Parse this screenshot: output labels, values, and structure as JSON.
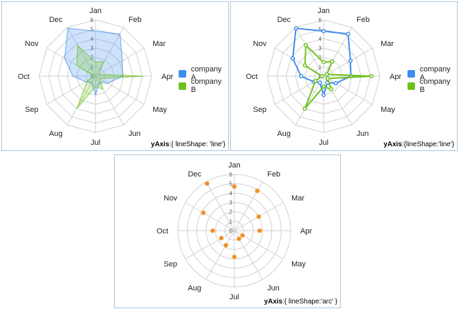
{
  "colors": {
    "grid": "#cfcfcf",
    "axis_text": "#555555",
    "company_a": "#3d8eee",
    "company_b": "#6dc21a",
    "points": "#f08c1f"
  },
  "chart_data": [
    {
      "type": "radar",
      "fill": "area",
      "grid_shape": "line",
      "categories": [
        "Jan",
        "Feb",
        "Mar",
        "Apr",
        "May",
        "Jun",
        "Jul",
        "Aug",
        "Sep",
        "Oct",
        "Nov",
        "Dec"
      ],
      "ylim": [
        0,
        6
      ],
      "yticks": [
        "0",
        "1",
        "2",
        "3",
        "4",
        "5",
        "6"
      ],
      "series": [
        {
          "name": "company A",
          "values": [
            4.8,
            5.2,
            3.3,
            2.9,
            1.5,
            0.8,
            2.0,
            0.8,
            1.2,
            2.4,
            3.8,
            5.9
          ]
        },
        {
          "name": "company B",
          "values": [
            1.5,
            1.8,
            0.4,
            5.1,
            0.5,
            1.6,
            1.1,
            4.0,
            1.0,
            0.2,
            2.3,
            3.8
          ]
        }
      ],
      "caption_key": "yAxis",
      "caption_rest": ":{ lineShape: 'line'}"
    },
    {
      "type": "radar",
      "fill": "line",
      "grid_shape": "line",
      "categories": [
        "Jan",
        "Feb",
        "Mar",
        "Apr",
        "May",
        "Jun",
        "Jul",
        "Aug",
        "Sep",
        "Oct",
        "Nov",
        "Dec"
      ],
      "ylim": [
        0,
        6
      ],
      "yticks": [
        "0",
        "1",
        "2",
        "3",
        "4",
        "5",
        "6"
      ],
      "series": [
        {
          "name": "company A",
          "values": [
            4.8,
            5.2,
            3.3,
            2.9,
            1.5,
            0.8,
            2.0,
            0.8,
            1.2,
            2.4,
            3.8,
            5.9
          ]
        },
        {
          "name": "company B",
          "values": [
            1.5,
            1.8,
            0.4,
            5.1,
            0.5,
            1.6,
            1.1,
            4.0,
            1.0,
            0.2,
            2.3,
            3.8
          ]
        }
      ],
      "caption_key": "yAxis",
      "caption_rest": ":{lineShape:'line'}"
    },
    {
      "type": "radar",
      "fill": "points",
      "grid_shape": "arc",
      "categories": [
        "Jan",
        "Feb",
        "Mar",
        "Apr",
        "May",
        "Jun",
        "Jul",
        "Aug",
        "Sep",
        "Oct",
        "Nov",
        "Dec"
      ],
      "ylim": [
        0,
        6
      ],
      "yticks": [
        "0",
        "1",
        "2",
        "3",
        "4",
        "5",
        "6"
      ],
      "series": [
        {
          "values": [
            4.7,
            4.9,
            3.0,
            2.7,
            1.0,
            1.0,
            2.8,
            1.8,
            1.6,
            2.3,
            3.8,
            5.8
          ]
        }
      ],
      "caption_key": "yAxis",
      "caption_rest": ":{ lineShape:'arc' }"
    }
  ],
  "legend": {
    "items": [
      "company A",
      "company B"
    ]
  }
}
